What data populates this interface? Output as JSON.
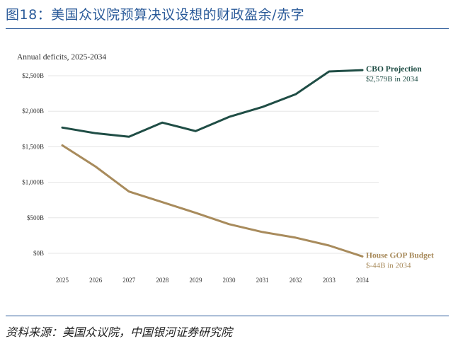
{
  "figure_title": "图18：美国众议院预算决议设想的财政盈余/赤字",
  "source": "资料来源：美国众议院，中国银河证券研究院",
  "colors": {
    "title_blue": "#2a5a99",
    "cbo_line": "#1f4d45",
    "gop_line": "#a88b5c",
    "grid": "#e5e5e5"
  },
  "chart_data": {
    "type": "line",
    "title": "Annual deficits, 2025-2034",
    "x": [
      "2025",
      "2026",
      "2027",
      "2028",
      "2029",
      "2030",
      "2031",
      "2032",
      "2033",
      "2034"
    ],
    "y_ticks": [
      "$0B",
      "$500B",
      "$1,000B",
      "$1,500B",
      "$2,000B",
      "$2,500B"
    ],
    "y_tick_values": [
      0,
      500,
      1000,
      1500,
      2000,
      2500
    ],
    "ylim": [
      0,
      2500
    ],
    "grid": true,
    "series": [
      {
        "name": "CBO Projection",
        "annotation": "$2,579B in 2034",
        "color": "#1f4d45",
        "values": [
          1770,
          1690,
          1640,
          1840,
          1720,
          1920,
          2060,
          2240,
          2560,
          2579
        ]
      },
      {
        "name": "House GOP Budget",
        "annotation": "$-44B in 2034",
        "color": "#a88b5c",
        "values": [
          1520,
          1220,
          870,
          720,
          570,
          410,
          300,
          220,
          110,
          -44
        ]
      }
    ]
  }
}
